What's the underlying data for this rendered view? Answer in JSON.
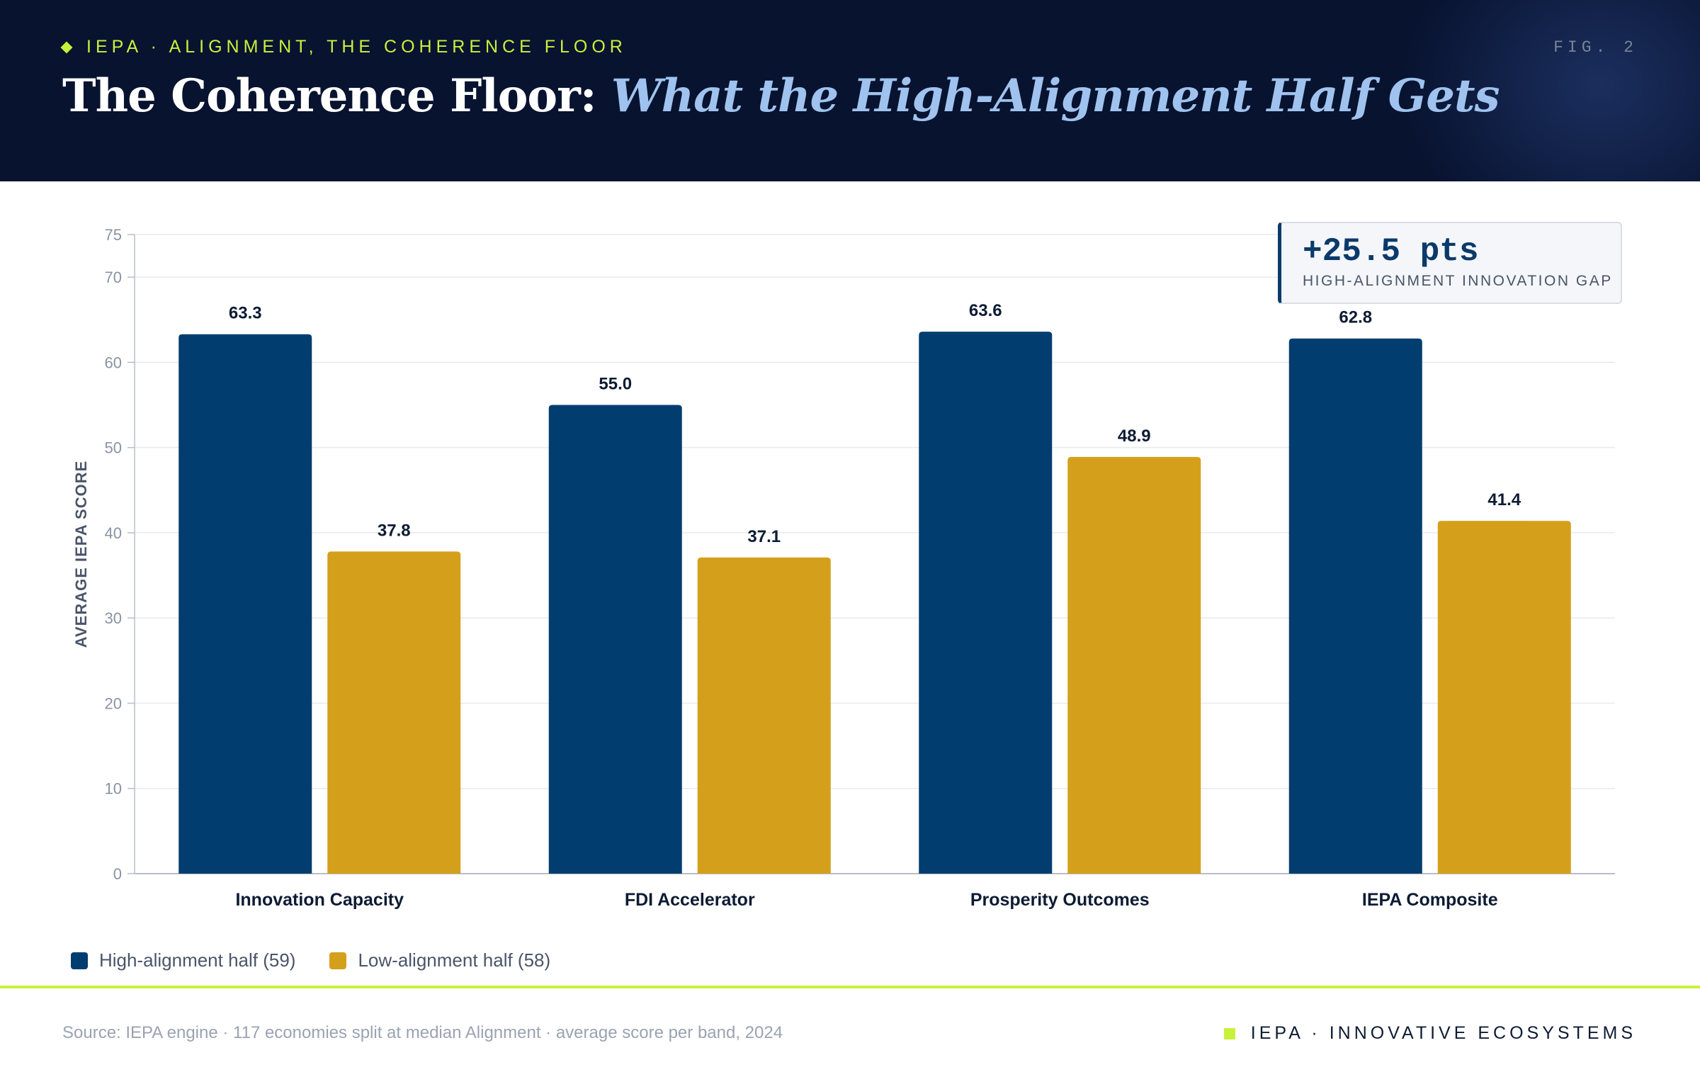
{
  "header": {
    "kicker": "IEPA · ALIGNMENT, THE COHERENCE FLOOR",
    "fig": "FIG. 2",
    "title_main": "The Coherence Floor:",
    "title_accent": "What the High-Alignment Half Gets"
  },
  "callout": {
    "value": "+25.5 pts",
    "label": "HIGH-ALIGNMENT INNOVATION GAP"
  },
  "legend": {
    "high": "High-alignment half (59)",
    "low": "Low-alignment half (58)"
  },
  "footer": {
    "source": "Source: IEPA engine · 117 economies split at median Alignment · average score per band, 2024",
    "brand": "IEPA · INNOVATIVE ECOSYSTEMS"
  },
  "colors": {
    "high": "#023d70",
    "low": "#d4a01c",
    "header_bg": "#081330",
    "accent_lime": "#c8f23a"
  },
  "chart_data": {
    "type": "bar",
    "categories": [
      "Innovation Capacity",
      "FDI Accelerator",
      "Prosperity Outcomes",
      "IEPA Composite"
    ],
    "series": [
      {
        "name": "High-alignment half (59)",
        "values": [
          63.3,
          55.0,
          63.6,
          62.8
        ]
      },
      {
        "name": "Low-alignment half (58)",
        "values": [
          37.8,
          37.1,
          48.9,
          41.4
        ]
      }
    ],
    "title": "The Coherence Floor: What the High-Alignment Half Gets",
    "xlabel": "",
    "ylabel": "AVERAGE IEPA SCORE",
    "ylim": [
      0,
      75
    ],
    "yticks": [
      0,
      10,
      20,
      30,
      40,
      50,
      60,
      70,
      75
    ],
    "grid": true,
    "legend_position": "bottom-left"
  }
}
